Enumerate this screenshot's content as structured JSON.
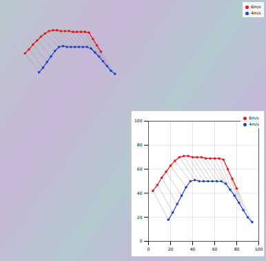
{
  "chart_data": [
    {
      "type": "scatter",
      "xlim": [
        0,
        100
      ],
      "ylim": [
        0,
        100
      ],
      "tick_labels": false,
      "grid": false,
      "legend": "top-right",
      "series": [
        {
          "name": "6m/s",
          "color": "#e31a1c",
          "x": [
            4,
            8,
            12,
            16,
            20,
            24,
            28,
            32,
            36,
            40,
            44,
            48,
            52,
            56,
            60,
            64,
            68,
            72,
            76,
            80
          ],
          "values": [
            42,
            47,
            53,
            58,
            63,
            67,
            70,
            71,
            71,
            70,
            70,
            70,
            69,
            69,
            69,
            69,
            68,
            60,
            52,
            44
          ]
        },
        {
          "name": "4m/s",
          "color": "#1f3fd6",
          "x": [
            18,
            22,
            26,
            30,
            34,
            38,
            42,
            46,
            50,
            54,
            58,
            62,
            66,
            70,
            74,
            78,
            82,
            86,
            90,
            94
          ],
          "values": [
            18,
            24,
            31,
            38,
            45,
            50,
            51,
            50,
            50,
            50,
            50,
            50,
            50,
            48,
            43,
            38,
            32,
            26,
            20,
            16
          ]
        }
      ]
    },
    {
      "type": "scatter",
      "xlim": [
        0,
        100
      ],
      "ylim": [
        0,
        100
      ],
      "xticks": [
        0,
        20,
        40,
        60,
        80,
        100
      ],
      "yticks": [
        0,
        20,
        40,
        60,
        80,
        100
      ],
      "grid": true,
      "legend": "top-right",
      "series": [
        {
          "name": "6m/s",
          "color": "#e31a1c",
          "x": [
            4,
            8,
            12,
            16,
            20,
            24,
            28,
            32,
            36,
            40,
            44,
            48,
            52,
            56,
            60,
            64,
            68,
            72,
            76,
            80
          ],
          "values": [
            42,
            47,
            53,
            58,
            63,
            67,
            70,
            71,
            71,
            70,
            70,
            70,
            69,
            69,
            69,
            69,
            68,
            60,
            52,
            44
          ]
        },
        {
          "name": "4m/s",
          "color": "#1f3fd6",
          "x": [
            18,
            22,
            26,
            30,
            34,
            38,
            42,
            46,
            50,
            54,
            58,
            62,
            66,
            70,
            74,
            78,
            82,
            86,
            90,
            94
          ],
          "values": [
            18,
            24,
            31,
            38,
            45,
            50,
            51,
            50,
            50,
            50,
            50,
            50,
            50,
            48,
            43,
            38,
            32,
            26,
            20,
            16
          ]
        }
      ]
    }
  ]
}
